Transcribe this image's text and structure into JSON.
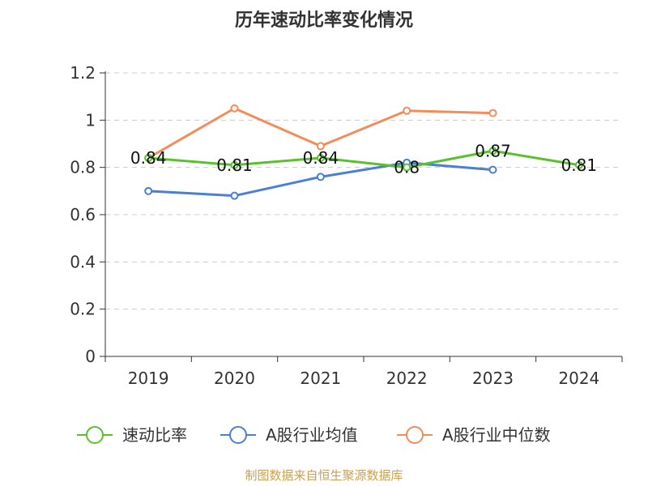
{
  "chart_data": {
    "type": "line",
    "title": "历年速动比率变化情况",
    "categories": [
      "2019",
      "2020",
      "2021",
      "2022",
      "2023",
      "2024"
    ],
    "ylim": [
      0,
      1.2
    ],
    "yticks": [
      "0",
      "0.2",
      "0.4",
      "0.6",
      "0.8",
      "1",
      "1.2"
    ],
    "grid": true,
    "legend_position": "bottom",
    "series": [
      {
        "name": "速动比率",
        "color": "#5ac12e",
        "values": [
          0.84,
          0.81,
          0.84,
          0.8,
          0.87,
          0.81
        ],
        "labels": [
          "0.84",
          "0.81",
          "0.84",
          "0.8",
          "0.87",
          "0.81"
        ],
        "show_labels": true
      },
      {
        "name": "A股行业均值",
        "color": "#4a7fd8",
        "values": [
          0.7,
          0.68,
          0.76,
          0.82,
          0.79,
          null
        ],
        "show_labels": false
      },
      {
        "name": "A股行业中位数",
        "color": "#f48c5a",
        "values": [
          0.84,
          1.05,
          0.89,
          1.04,
          1.03,
          null
        ],
        "show_labels": false
      }
    ]
  },
  "source": "制图数据来自恒生聚源数据库"
}
